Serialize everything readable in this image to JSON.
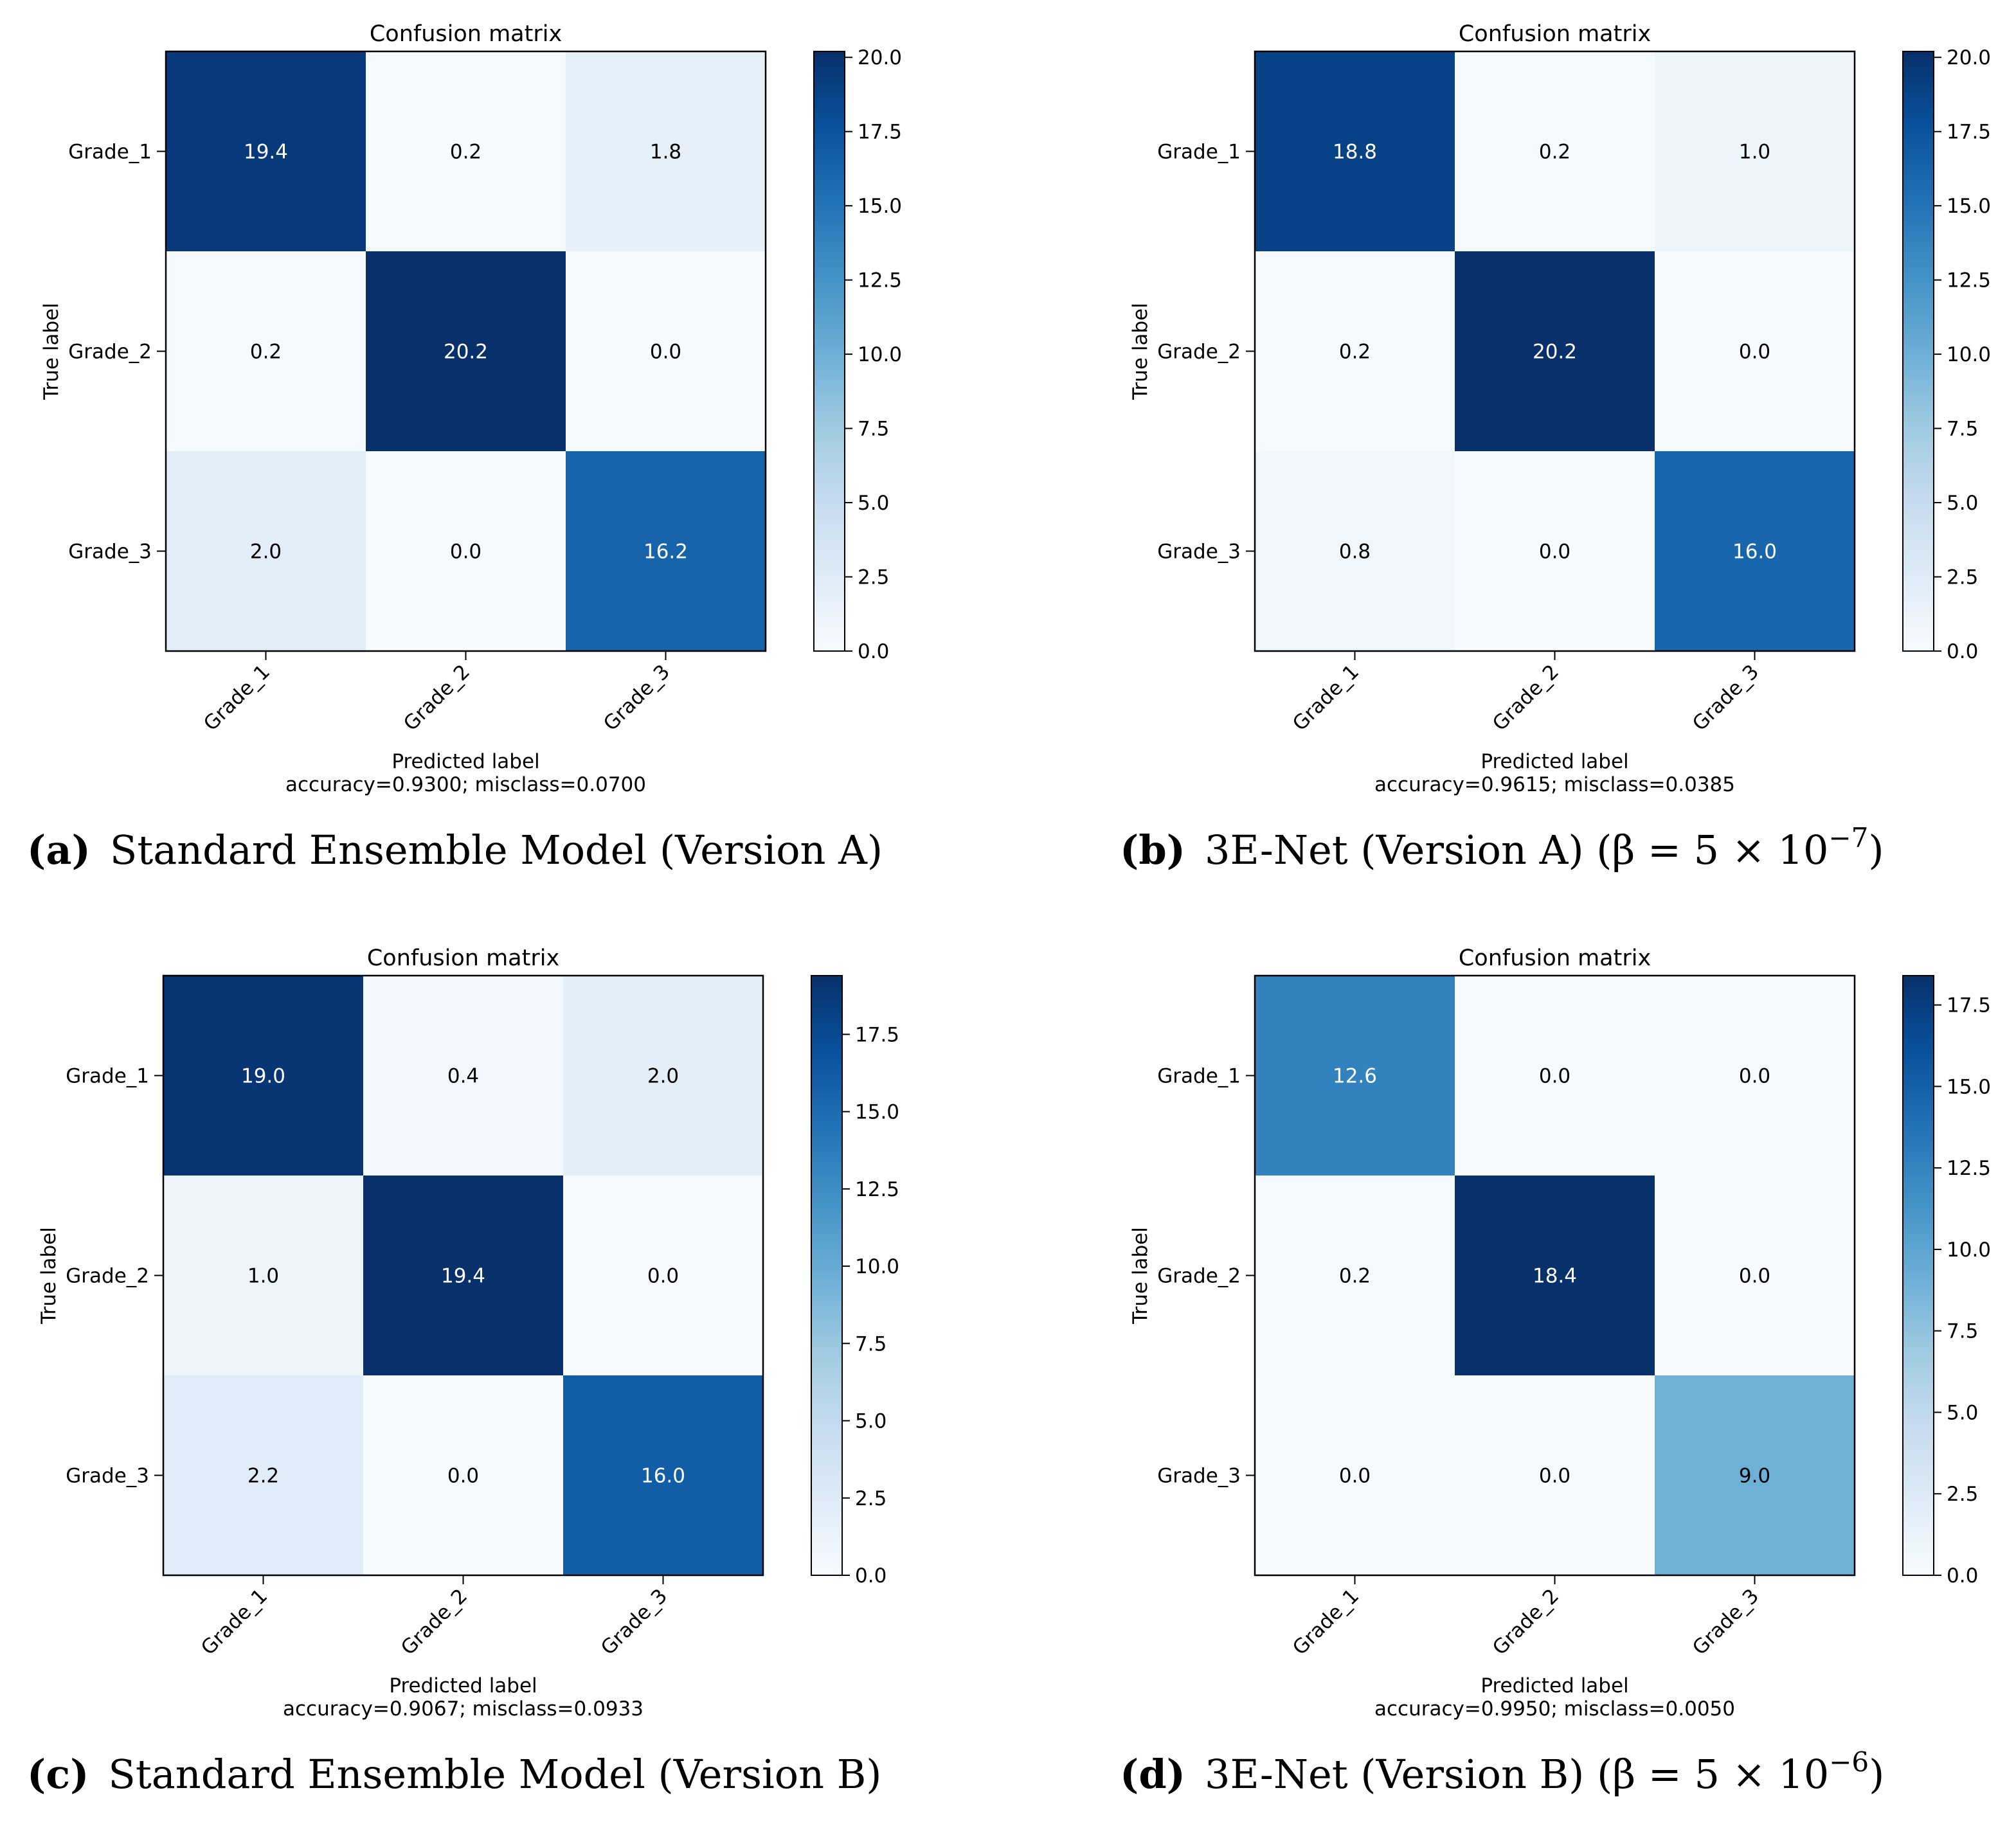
{
  "chart_data": [
    {
      "type": "heatmap",
      "title": "Confusion matrix",
      "xlabel": "Predicted label",
      "ylabel": "True label",
      "stats": "accuracy=0.9300; misclass=0.0700",
      "categories": [
        "Grade_1",
        "Grade_2",
        "Grade_3"
      ],
      "rows": [
        "Grade_1",
        "Grade_2",
        "Grade_3"
      ],
      "values": [
        [
          19.4,
          0.2,
          1.8
        ],
        [
          0.2,
          20.2,
          0.0
        ],
        [
          2.0,
          0.0,
          16.2
        ]
      ],
      "value_labels": [
        [
          "19.4",
          "0.2",
          "1.8"
        ],
        [
          "0.2",
          "20.2",
          "0.0"
        ],
        [
          "2.0",
          "0.0",
          "16.2"
        ]
      ],
      "colorbar": {
        "range": [
          0,
          20.2
        ],
        "ticks": [
          "0.0",
          "2.5",
          "5.0",
          "7.5",
          "10.0",
          "12.5",
          "15.0",
          "17.5",
          "20.0"
        ]
      },
      "caption": {
        "letter": "(a)",
        "text": "Standard Ensemble Model (Version A)"
      }
    },
    {
      "type": "heatmap",
      "title": "Confusion matrix",
      "xlabel": "Predicted label",
      "ylabel": "True label",
      "stats": "accuracy=0.9615; misclass=0.0385",
      "categories": [
        "Grade_1",
        "Grade_2",
        "Grade_3"
      ],
      "rows": [
        "Grade_1",
        "Grade_2",
        "Grade_3"
      ],
      "values": [
        [
          18.8,
          0.2,
          1.0
        ],
        [
          0.2,
          20.2,
          0.0
        ],
        [
          0.8,
          0.0,
          16.0
        ]
      ],
      "value_labels": [
        [
          "18.8",
          "0.2",
          "1.0"
        ],
        [
          "0.2",
          "20.2",
          "0.0"
        ],
        [
          "0.8",
          "0.0",
          "16.0"
        ]
      ],
      "colorbar": {
        "range": [
          0,
          20.2
        ],
        "ticks": [
          "0.0",
          "2.5",
          "5.0",
          "7.5",
          "10.0",
          "12.5",
          "15.0",
          "17.5",
          "20.0"
        ]
      },
      "caption": {
        "letter": "(b)",
        "text": "3E-Net (Version A) (β = 5 × 10",
        "exponent": "−7",
        "suffix": ")"
      }
    },
    {
      "type": "heatmap",
      "title": "Confusion matrix",
      "xlabel": "Predicted label",
      "ylabel": "True label",
      "stats": "accuracy=0.9067; misclass=0.0933",
      "categories": [
        "Grade_1",
        "Grade_2",
        "Grade_3"
      ],
      "rows": [
        "Grade_1",
        "Grade_2",
        "Grade_3"
      ],
      "values": [
        [
          19.0,
          0.4,
          2.0
        ],
        [
          1.0,
          19.4,
          0.0
        ],
        [
          2.2,
          0.0,
          16.0
        ]
      ],
      "value_labels": [
        [
          "19.0",
          "0.4",
          "2.0"
        ],
        [
          "1.0",
          "19.4",
          "0.0"
        ],
        [
          "2.2",
          "0.0",
          "16.0"
        ]
      ],
      "colorbar": {
        "range": [
          0,
          19.4
        ],
        "ticks": [
          "0.0",
          "2.5",
          "5.0",
          "7.5",
          "10.0",
          "12.5",
          "15.0",
          "17.5"
        ]
      },
      "caption": {
        "letter": "(c)",
        "text": "Standard Ensemble Model (Version B)"
      }
    },
    {
      "type": "heatmap",
      "title": "Confusion matrix",
      "xlabel": "Predicted label",
      "ylabel": "True label",
      "stats": "accuracy=0.9950; misclass=0.0050",
      "categories": [
        "Grade_1",
        "Grade_2",
        "Grade_3"
      ],
      "rows": [
        "Grade_1",
        "Grade_2",
        "Grade_3"
      ],
      "values": [
        [
          12.6,
          0.0,
          0.0
        ],
        [
          0.2,
          18.4,
          0.0
        ],
        [
          0.0,
          0.0,
          9.0
        ]
      ],
      "value_labels": [
        [
          "12.6",
          "0.0",
          "0.0"
        ],
        [
          "0.2",
          "18.4",
          "0.0"
        ],
        [
          "0.0",
          "0.0",
          "9.0"
        ]
      ],
      "colorbar": {
        "range": [
          0,
          18.4
        ],
        "ticks": [
          "0.0",
          "2.5",
          "5.0",
          "7.5",
          "10.0",
          "12.5",
          "15.0",
          "17.5"
        ]
      },
      "caption": {
        "letter": "(d)",
        "text": "3E-Net (Version B) (β = 5 × 10",
        "exponent": "−6",
        "suffix": ")"
      }
    }
  ]
}
